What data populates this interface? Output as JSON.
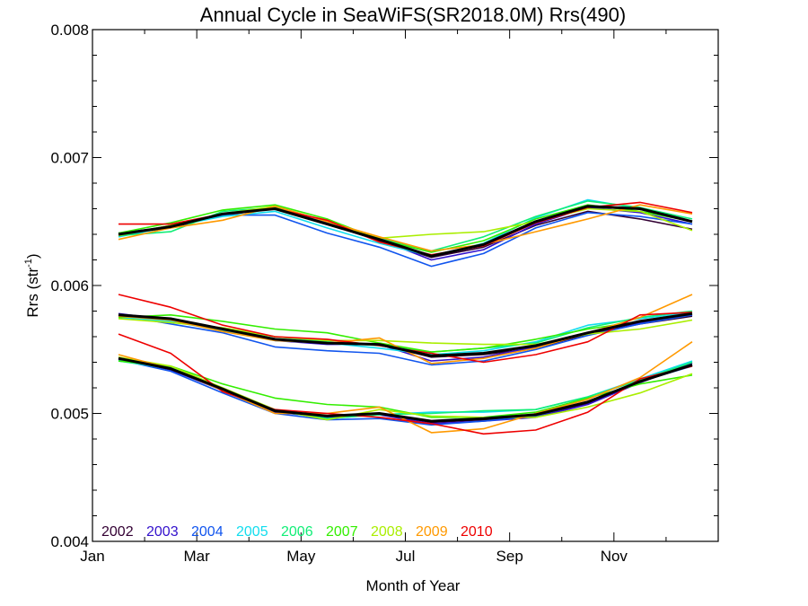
{
  "chart_data": {
    "type": "line",
    "title": "Annual Cycle in SeaWiFS(SR2018.0M) Rrs(490)",
    "xlabel": "Month of Year",
    "ylabel": "Rrs (str",
    "ylabel_sup": "-1",
    "ylabel_close": ")",
    "xlim": [
      1,
      13
    ],
    "ylim": [
      0.004,
      0.008
    ],
    "x_ticks": [
      {
        "value": 1,
        "label": "Jan"
      },
      {
        "value": 3,
        "label": "Mar"
      },
      {
        "value": 5,
        "label": "May"
      },
      {
        "value": 7,
        "label": "Jul"
      },
      {
        "value": 9,
        "label": "Sep"
      },
      {
        "value": 11,
        "label": "Nov"
      }
    ],
    "x_minor_ticks": [
      2,
      4,
      6,
      8,
      10,
      12
    ],
    "y_ticks": [
      {
        "value": 0.004,
        "label": "0.004"
      },
      {
        "value": 0.005,
        "label": "0.005"
      },
      {
        "value": 0.006,
        "label": "0.006"
      },
      {
        "value": 0.007,
        "label": "0.007"
      },
      {
        "value": 0.008,
        "label": "0.008"
      }
    ],
    "grid": false,
    "legend_position": "bottom-left",
    "x": [
      1.5,
      2.5,
      3.5,
      4.5,
      5.5,
      6.5,
      7.5,
      8.5,
      9.5,
      10.5,
      11.5,
      12.5
    ],
    "series": [
      {
        "name": "2002",
        "color": "#330033",
        "groups": [
          [
            0.0064,
            0.00645,
            0.00655,
            0.0066,
            0.00648,
            0.00635,
            0.00622,
            0.0063,
            0.00647,
            0.00658,
            0.00652,
            0.00644
          ],
          [
            0.00577,
            0.00574,
            0.00565,
            0.00558,
            0.00555,
            0.00554,
            0.00544,
            0.00546,
            0.00551,
            0.00562,
            0.0057,
            0.00576
          ],
          [
            0.00543,
            0.00535,
            0.00518,
            0.00501,
            0.00498,
            0.005,
            0.00493,
            0.00495,
            0.00498,
            0.00508,
            0.00525,
            0.0054
          ]
        ]
      },
      {
        "name": "2003",
        "color": "#3311cc",
        "groups": [
          [
            0.00641,
            0.00646,
            0.00656,
            0.00661,
            0.00649,
            0.00636,
            0.0062,
            0.00628,
            0.00648,
            0.00661,
            0.00657,
            0.00648
          ],
          [
            0.00578,
            0.00573,
            0.00566,
            0.00557,
            0.00554,
            0.00554,
            0.00541,
            0.00544,
            0.00552,
            0.00563,
            0.00571,
            0.00577
          ],
          [
            0.00543,
            0.00534,
            0.00518,
            0.00501,
            0.00497,
            0.00499,
            0.00492,
            0.00494,
            0.00497,
            0.00507,
            0.00524,
            0.00539
          ]
        ]
      },
      {
        "name": "2004",
        "color": "#1155ee",
        "groups": [
          [
            0.00639,
            0.00647,
            0.00655,
            0.00655,
            0.00641,
            0.0063,
            0.00615,
            0.00625,
            0.00645,
            0.00657,
            0.00654,
            0.00648
          ],
          [
            0.00577,
            0.0057,
            0.00563,
            0.00552,
            0.00549,
            0.00547,
            0.00538,
            0.00541,
            0.0055,
            0.00561,
            0.0057,
            0.00577
          ],
          [
            0.00542,
            0.00533,
            0.00516,
            0.005,
            0.00495,
            0.00496,
            0.00491,
            0.00494,
            0.00498,
            0.00509,
            0.00525,
            0.00537
          ]
        ]
      },
      {
        "name": "2005",
        "color": "#11ddee",
        "groups": [
          [
            0.00638,
            0.00646,
            0.00654,
            0.00658,
            0.00645,
            0.00633,
            0.00623,
            0.00633,
            0.00653,
            0.00667,
            0.0066,
            0.0065
          ],
          [
            0.00575,
            0.00572,
            0.00565,
            0.00557,
            0.00555,
            0.00551,
            0.00546,
            0.00549,
            0.00556,
            0.00569,
            0.00574,
            0.00579
          ],
          [
            0.00541,
            0.00535,
            0.00519,
            0.00502,
            0.00496,
            0.00499,
            0.00501,
            0.00501,
            0.00503,
            0.00513,
            0.00527,
            0.00541
          ]
        ]
      },
      {
        "name": "2006",
        "color": "#11ee77",
        "groups": [
          [
            0.00639,
            0.00642,
            0.00658,
            0.00661,
            0.00648,
            0.00637,
            0.00627,
            0.00638,
            0.00654,
            0.00666,
            0.00661,
            0.00652
          ],
          [
            0.00576,
            0.00573,
            0.00566,
            0.0056,
            0.00556,
            0.00553,
            0.00548,
            0.00551,
            0.00555,
            0.00567,
            0.00575,
            0.0058
          ],
          [
            0.00541,
            0.00536,
            0.00519,
            0.00502,
            0.00496,
            0.00499,
            0.005,
            0.00502,
            0.00503,
            0.00513,
            0.00526,
            0.0054
          ]
        ]
      },
      {
        "name": "2007",
        "color": "#33ee00",
        "groups": [
          [
            0.00641,
            0.00649,
            0.00659,
            0.00663,
            0.00652,
            0.00636,
            0.00626,
            0.00635,
            0.00652,
            0.00663,
            0.00658,
            0.0065
          ],
          [
            0.00575,
            0.00577,
            0.00572,
            0.00566,
            0.00563,
            0.00555,
            0.00548,
            0.00551,
            0.00558,
            0.00566,
            0.00572,
            0.00578
          ],
          [
            0.00541,
            0.00537,
            0.00523,
            0.00512,
            0.00507,
            0.00505,
            0.00497,
            0.00497,
            0.00501,
            0.00512,
            0.00523,
            0.0053
          ]
        ]
      },
      {
        "name": "2008",
        "color": "#aaee00",
        "groups": [
          [
            0.00639,
            0.00647,
            0.00656,
            0.00662,
            0.0065,
            0.00637,
            0.0064,
            0.00642,
            0.0065,
            0.0066,
            0.00658,
            0.00643
          ],
          [
            0.00574,
            0.00571,
            0.00567,
            0.0056,
            0.00557,
            0.00557,
            0.00555,
            0.00554,
            0.00554,
            0.00562,
            0.00566,
            0.00573
          ],
          [
            0.00544,
            0.00537,
            0.0052,
            0.00503,
            0.00495,
            0.00503,
            0.00498,
            0.00497,
            0.00497,
            0.00505,
            0.00516,
            0.00531
          ]
        ]
      },
      {
        "name": "2009",
        "color": "#ff9900",
        "groups": [
          [
            0.00636,
            0.00645,
            0.00651,
            0.00662,
            0.0065,
            0.00638,
            0.00627,
            0.00632,
            0.00642,
            0.00652,
            0.00663,
            0.00656
          ],
          [
            0.00576,
            0.00573,
            0.00564,
            0.00557,
            0.00555,
            0.00559,
            0.00539,
            0.00543,
            0.00551,
            0.00563,
            0.00575,
            0.00593
          ],
          [
            0.00546,
            0.00535,
            0.00518,
            0.005,
            0.005,
            0.00505,
            0.00485,
            0.00488,
            0.005,
            0.00511,
            0.00528,
            0.00556
          ]
        ]
      },
      {
        "name": "2010",
        "color": "#ee0000",
        "groups": [
          [
            0.00648,
            0.00648,
            0.00656,
            0.0066,
            0.00651,
            0.00634,
            0.00624,
            0.00631,
            0.00649,
            0.00661,
            0.00665,
            0.00657
          ],
          [
            0.00593,
            0.00583,
            0.00569,
            0.0056,
            0.00558,
            0.00553,
            0.00547,
            0.0054,
            0.00546,
            0.00556,
            0.00577,
            0.00579
          ],
          [
            0.00562,
            0.00547,
            0.00517,
            0.00503,
            0.005,
            0.00497,
            0.00492,
            0.00484,
            0.00487,
            0.00501,
            0.00527,
            0.00537
          ]
        ]
      },
      {
        "color": "#000000",
        "emphasis": true,
        "groups": [
          [
            0.0064,
            0.00646,
            0.00656,
            0.0066,
            0.00648,
            0.00636,
            0.00623,
            0.00632,
            0.0065,
            0.00662,
            0.0066,
            0.0065
          ],
          [
            0.00577,
            0.00574,
            0.00566,
            0.00558,
            0.00555,
            0.00554,
            0.00545,
            0.00547,
            0.00553,
            0.00563,
            0.00572,
            0.00578
          ],
          [
            0.00543,
            0.00535,
            0.00519,
            0.00502,
            0.00498,
            0.005,
            0.00494,
            0.00496,
            0.00499,
            0.00509,
            0.00525,
            0.00538
          ]
        ]
      }
    ]
  }
}
